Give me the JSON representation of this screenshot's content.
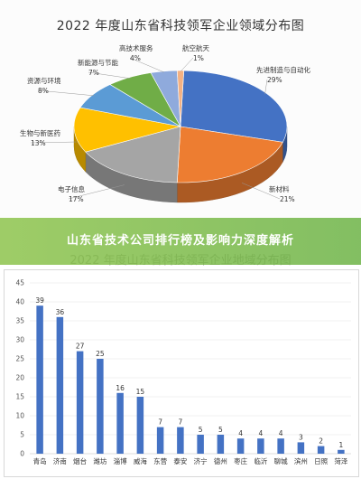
{
  "chart_data": [
    {
      "type": "pie",
      "title": "2022 年度山东省科技领军企业领域分布图",
      "slices": [
        {
          "name": "先进制造与自动化",
          "value": 29,
          "label": "29%",
          "color": "#4472c4"
        },
        {
          "name": "新材料",
          "value": 21,
          "label": "21%",
          "color": "#ed7d31"
        },
        {
          "name": "电子信息",
          "value": 17,
          "label": "17%",
          "color": "#a5a5a5"
        },
        {
          "name": "生物与新医药",
          "value": 13,
          "label": "13%",
          "color": "#ffc000"
        },
        {
          "name": "资源与环境",
          "value": 8,
          "label": "8%",
          "color": "#5b9bd5"
        },
        {
          "name": "新能源与节能",
          "value": 7,
          "label": "7%",
          "color": "#70ad47"
        },
        {
          "name": "高技术服务",
          "value": 4,
          "label": "4%",
          "color": "#8faadc"
        },
        {
          "name": "航空航天",
          "value": 1,
          "label": "1%",
          "color": "#f4b183"
        }
      ]
    },
    {
      "type": "bar",
      "title": "2022 年度山东省科技领军企业地域分布图",
      "categories": [
        "青岛",
        "济南",
        "烟台",
        "潍坊",
        "淄博",
        "威海",
        "东营",
        "泰安",
        "济宁",
        "德州",
        "枣庄",
        "临沂",
        "聊城",
        "滨州",
        "日照",
        "菏泽"
      ],
      "values": [
        39,
        36,
        27,
        25,
        16,
        15,
        7,
        7,
        5,
        5,
        4,
        4,
        4,
        3,
        2,
        1
      ],
      "yticks": [
        "0",
        "5",
        "10",
        "15",
        "20",
        "25",
        "30",
        "35",
        "40",
        "45"
      ],
      "ylim": [
        0,
        45
      ],
      "color": "#4472c4",
      "grid": true
    }
  ],
  "banner": {
    "text": "山东省技术公司排行榜及影响力深度解析"
  }
}
